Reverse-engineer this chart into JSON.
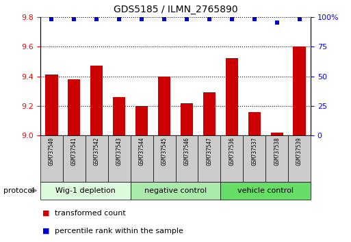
{
  "title": "GDS5185 / ILMN_2765890",
  "samples": [
    "GSM737540",
    "GSM737541",
    "GSM737542",
    "GSM737543",
    "GSM737544",
    "GSM737545",
    "GSM737546",
    "GSM737547",
    "GSM737536",
    "GSM737537",
    "GSM737538",
    "GSM737539"
  ],
  "transformed_counts": [
    9.41,
    9.38,
    9.47,
    9.26,
    9.2,
    9.4,
    9.22,
    9.29,
    9.52,
    9.16,
    9.02,
    9.6
  ],
  "percentile_ranks": [
    98,
    98,
    98,
    98,
    98,
    98,
    98,
    98,
    98,
    98,
    95,
    98
  ],
  "ylim_left": [
    9.0,
    9.8
  ],
  "ylim_right": [
    0,
    100
  ],
  "yticks_left": [
    9.0,
    9.2,
    9.4,
    9.6,
    9.8
  ],
  "yticks_right": [
    0,
    25,
    50,
    75,
    100
  ],
  "groups": [
    {
      "label": "Wig-1 depletion",
      "start": 0,
      "end": 4,
      "color": "#ddfadd"
    },
    {
      "label": "negative control",
      "start": 4,
      "end": 8,
      "color": "#aaeaaa"
    },
    {
      "label": "vehicle control",
      "start": 8,
      "end": 12,
      "color": "#66dd66"
    }
  ],
  "bar_color": "#cc0000",
  "dot_color": "#0000cc",
  "bar_bottom": 9.0,
  "protocol_label": "protocol",
  "legend_items": [
    {
      "color": "#cc0000",
      "label": "transformed count"
    },
    {
      "color": "#0000cc",
      "label": "percentile rank within the sample"
    }
  ]
}
